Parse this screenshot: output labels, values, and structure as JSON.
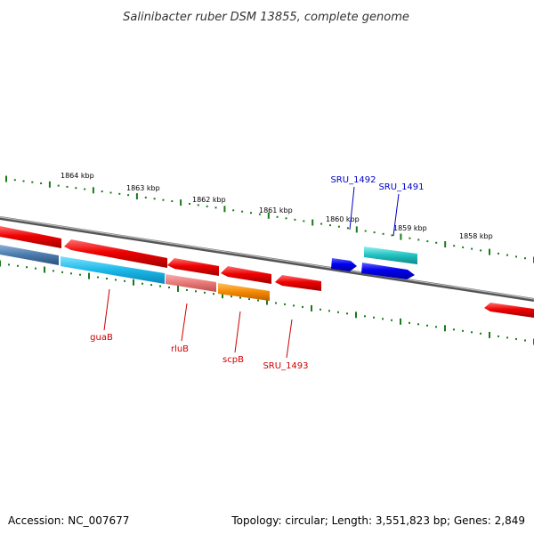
{
  "title": "Salinibacter ruber DSM 13855, complete genome",
  "accession": "Accession: NC_007677",
  "summary": "Topology: circular; Length: 3,551,823 bp; Genes: 2,849",
  "ruler_labels": [
    "1864 kbp",
    "1863 kbp",
    "1862 kbp",
    "1861 kbp",
    "1860 kbp",
    "1859 kbp",
    "1858 kbp"
  ],
  "genes": [
    {
      "id": "guaB",
      "strand": "-",
      "color": "#ee0000"
    },
    {
      "id": "rluB",
      "strand": "-",
      "color": "#ee0000"
    },
    {
      "id": "scpB",
      "strand": "-",
      "color": "#ee0000"
    },
    {
      "id": "SRU_1493",
      "strand": "-",
      "color": "#ee0000"
    },
    {
      "id": "SRU_1492",
      "strand": "+",
      "color": "#0000ee"
    },
    {
      "id": "SRU_1491",
      "strand": "+",
      "color": "#0000ee"
    }
  ],
  "colors": {
    "red_label": "#cc0000",
    "blue_label": "#0000cc",
    "ruler": "#1a7a1a",
    "backbone": "#888888",
    "gene_red": "#ee0000",
    "gene_blue": "#0000ee",
    "band_cyan": "#1ab8e8",
    "band_pink": "#e87878",
    "band_orange": "#f58a00",
    "band_teal": "#20c0c0",
    "band_steel": "#4a7aaa"
  }
}
